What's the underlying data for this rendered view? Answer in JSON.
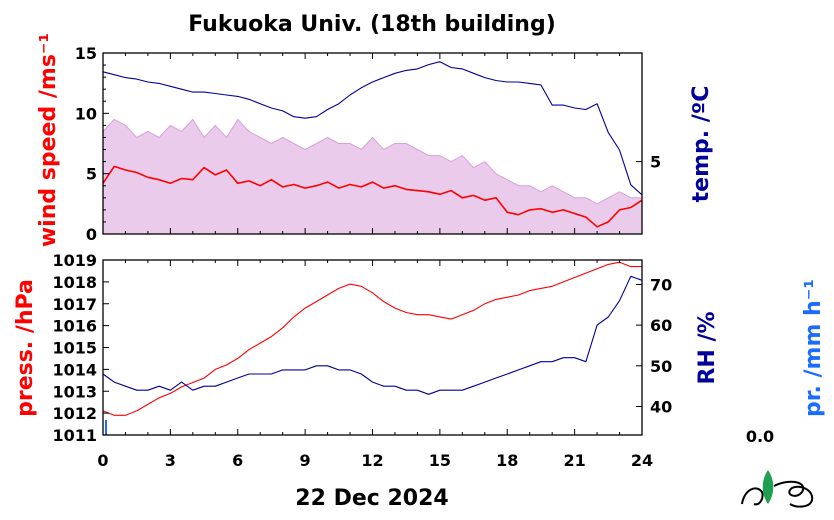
{
  "title": "Fukuoka Univ. (18th building)",
  "date_label": "22 Dec 2024",
  "precip_value": "0.0",
  "colors": {
    "wind_gust": "#d9a0dd",
    "wind_mean": "#ff0000",
    "temperature": "#00009a",
    "pressure": "#ff0000",
    "humidity": "#00009a",
    "precip_label": "#1a6cff",
    "logo_leaf": "#1fa050"
  },
  "chart_data": [
    {
      "type": "line",
      "panel": "top",
      "x_ticks": [
        "0",
        "3",
        "6",
        "9",
        "12",
        "15",
        "18",
        "21",
        "24"
      ],
      "xlim": [
        0,
        24
      ],
      "left_axis": {
        "label": "wind speed /ms⁻¹",
        "ylim": [
          0,
          15
        ],
        "ticks": [
          "0",
          "5",
          "10",
          "15"
        ]
      },
      "right_axis": {
        "label": "temp. /ºC",
        "ylim": [
          0,
          12.5
        ],
        "ticks": [
          "5"
        ]
      },
      "series": [
        {
          "name": "wind speed (gust)",
          "axis": "left",
          "x": [
            0,
            0.5,
            1,
            1.5,
            2,
            2.5,
            3,
            3.5,
            4,
            4.5,
            5,
            5.5,
            6,
            6.5,
            7,
            7.5,
            8,
            8.5,
            9,
            9.5,
            10,
            10.5,
            11,
            11.5,
            12,
            12.5,
            13,
            13.5,
            14,
            14.5,
            15,
            15.5,
            16,
            16.5,
            17,
            17.5,
            18,
            18.5,
            19,
            19.5,
            20,
            20.5,
            21,
            21.5,
            22,
            22.5,
            23,
            23.5,
            24
          ],
          "values": [
            8.5,
            9.5,
            9,
            8,
            8.5,
            8,
            9,
            8.5,
            9.5,
            8,
            9,
            8,
            9.5,
            8.5,
            8,
            7.5,
            8,
            7.5,
            7,
            7.5,
            8,
            7.5,
            7.5,
            7,
            8,
            7,
            7.5,
            7.5,
            7,
            6.5,
            6.5,
            6,
            6.5,
            5.5,
            6,
            5,
            4.5,
            4,
            4,
            3.5,
            4,
            3.5,
            3,
            3,
            2.5,
            3,
            3.5,
            3,
            3
          ]
        },
        {
          "name": "wind speed (mean)",
          "axis": "left",
          "x": [
            0,
            0.5,
            1,
            1.5,
            2,
            2.5,
            3,
            3.5,
            4,
            4.5,
            5,
            5.5,
            6,
            6.5,
            7,
            7.5,
            8,
            8.5,
            9,
            9.5,
            10,
            10.5,
            11,
            11.5,
            12,
            12.5,
            13,
            13.5,
            14,
            14.5,
            15,
            15.5,
            16,
            16.5,
            17,
            17.5,
            18,
            18.5,
            19,
            19.5,
            20,
            20.5,
            21,
            21.5,
            22,
            22.5,
            23,
            23.5,
            24
          ],
          "values": [
            4.2,
            5.6,
            5.3,
            5.1,
            4.7,
            4.5,
            4.2,
            4.6,
            4.5,
            5.5,
            4.9,
            5.3,
            4.2,
            4.4,
            4.0,
            4.5,
            3.9,
            4.1,
            3.8,
            4.0,
            4.3,
            3.8,
            4.1,
            3.9,
            4.3,
            3.8,
            4.0,
            3.7,
            3.6,
            3.5,
            3.3,
            3.6,
            3.0,
            3.2,
            2.8,
            3.0,
            1.8,
            1.6,
            2.0,
            2.1,
            1.8,
            2.0,
            1.7,
            1.4,
            0.6,
            1.0,
            2.0,
            2.2,
            2.8
          ]
        },
        {
          "name": "temperature",
          "axis": "right",
          "x": [
            0,
            0.5,
            1,
            1.5,
            2,
            2.5,
            3,
            3.5,
            4,
            4.5,
            5,
            5.5,
            6,
            6.5,
            7,
            7.5,
            8,
            8.5,
            9,
            9.5,
            10,
            10.5,
            11,
            11.5,
            12,
            12.5,
            13,
            13.5,
            14,
            14.5,
            15,
            15.5,
            16,
            16.5,
            17,
            17.5,
            18,
            18.5,
            19,
            19.5,
            20,
            20.5,
            21,
            21.5,
            22,
            22.5,
            23,
            23.5,
            24
          ],
          "values": [
            11.2,
            11.0,
            10.8,
            10.7,
            10.5,
            10.4,
            10.2,
            10.0,
            9.8,
            9.8,
            9.7,
            9.6,
            9.5,
            9.3,
            9.0,
            8.7,
            8.5,
            8.1,
            8.0,
            8.1,
            8.6,
            9.0,
            9.6,
            10.1,
            10.5,
            10.8,
            11.1,
            11.3,
            11.4,
            11.7,
            11.9,
            11.5,
            11.4,
            11.1,
            10.8,
            10.6,
            10.5,
            10.5,
            10.4,
            10.3,
            8.9,
            8.9,
            8.7,
            8.6,
            9.0,
            7.0,
            5.8,
            3.4,
            2.7
          ]
        }
      ]
    },
    {
      "type": "line",
      "panel": "bottom",
      "x_ticks": [
        "0",
        "3",
        "6",
        "9",
        "12",
        "15",
        "18",
        "21",
        "24"
      ],
      "xlim": [
        0,
        24
      ],
      "left_axis": {
        "label": "press. /hPa",
        "ylim": [
          1011,
          1019
        ],
        "ticks": [
          "1011",
          "1012",
          "1013",
          "1014",
          "1015",
          "1016",
          "1017",
          "1018",
          "1019"
        ]
      },
      "right_axis": {
        "label": "RH /%",
        "ylim": [
          33,
          76
        ],
        "ticks": [
          "40",
          "50",
          "60",
          "70"
        ]
      },
      "extra_axis": {
        "label": "pr. /mm h⁻¹"
      },
      "series": [
        {
          "name": "pressure",
          "axis": "left",
          "x": [
            0,
            0.5,
            1,
            1.5,
            2,
            2.5,
            3,
            3.5,
            4,
            4.5,
            5,
            5.5,
            6,
            6.5,
            7,
            7.5,
            8,
            8.5,
            9,
            9.5,
            10,
            10.5,
            11,
            11.5,
            12,
            12.5,
            13,
            13.5,
            14,
            14.5,
            15,
            15.5,
            16,
            16.5,
            17,
            17.5,
            18,
            18.5,
            19,
            19.5,
            20,
            20.5,
            21,
            21.5,
            22,
            22.5,
            23,
            23.5,
            24
          ],
          "values": [
            1012.1,
            1011.9,
            1011.9,
            1012.1,
            1012.4,
            1012.7,
            1012.9,
            1013.2,
            1013.4,
            1013.6,
            1014.0,
            1014.2,
            1014.5,
            1014.9,
            1015.2,
            1015.5,
            1015.9,
            1016.4,
            1016.8,
            1017.1,
            1017.4,
            1017.7,
            1017.9,
            1017.8,
            1017.5,
            1017.1,
            1016.8,
            1016.6,
            1016.5,
            1016.5,
            1016.4,
            1016.3,
            1016.5,
            1016.7,
            1017.0,
            1017.2,
            1017.3,
            1017.4,
            1017.6,
            1017.7,
            1017.8,
            1018.0,
            1018.2,
            1018.4,
            1018.6,
            1018.8,
            1018.9,
            1018.7,
            1018.7
          ]
        },
        {
          "name": "relative humidity",
          "axis": "right",
          "x": [
            0,
            0.5,
            1,
            1.5,
            2,
            2.5,
            3,
            3.5,
            4,
            4.5,
            5,
            5.5,
            6,
            6.5,
            7,
            7.5,
            8,
            8.5,
            9,
            9.5,
            10,
            10.5,
            11,
            11.5,
            12,
            12.5,
            13,
            13.5,
            14,
            14.5,
            15,
            15.5,
            16,
            16.5,
            17,
            17.5,
            18,
            18.5,
            19,
            19.5,
            20,
            20.5,
            21,
            21.5,
            22,
            22.5,
            23,
            23.5,
            24
          ],
          "values": [
            48,
            46,
            45,
            44,
            44,
            45,
            44,
            46,
            44,
            45,
            45,
            46,
            47,
            48,
            48,
            48,
            49,
            49,
            49,
            50,
            50,
            49,
            49,
            48,
            46,
            45,
            45,
            44,
            44,
            43,
            44,
            44,
            44,
            45,
            46,
            47,
            48,
            49,
            50,
            51,
            51,
            52,
            52,
            51,
            60,
            62,
            66,
            72,
            71
          ]
        }
      ]
    }
  ]
}
